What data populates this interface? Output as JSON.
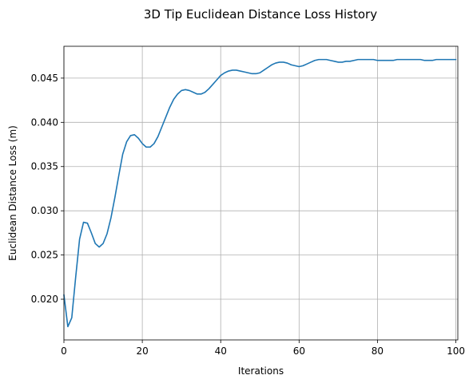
{
  "chart_data": {
    "type": "line",
    "title": "3D Tip Euclidean Distance Loss History",
    "xlabel": "Iterations",
    "ylabel": "Euclidean Distance Loss (m)",
    "xlim": [
      0,
      100.5
    ],
    "ylim": [
      0.0154,
      0.0486
    ],
    "xticks": [
      0,
      20,
      40,
      60,
      80,
      100
    ],
    "yticks": [
      0.02,
      0.025,
      0.03,
      0.035,
      0.04,
      0.045
    ],
    "ytick_labels": [
      "0.020",
      "0.025",
      "0.030",
      "0.035",
      "0.040",
      "0.045"
    ],
    "grid": true,
    "line_color": "#1f77b4",
    "series": [
      {
        "x": [
          0,
          1,
          2,
          3,
          4,
          5,
          6,
          7,
          8,
          9,
          10,
          11,
          12,
          13,
          14,
          15,
          16,
          17,
          18,
          19,
          20,
          21,
          22,
          23,
          24,
          25,
          26,
          27,
          28,
          29,
          30,
          31,
          32,
          33,
          34,
          35,
          36,
          37,
          38,
          39,
          40,
          41,
          42,
          43,
          44,
          45,
          46,
          47,
          48,
          49,
          50,
          51,
          52,
          53,
          54,
          55,
          56,
          57,
          58,
          59,
          60,
          61,
          62,
          63,
          64,
          65,
          66,
          67,
          68,
          69,
          70,
          71,
          72,
          73,
          74,
          75,
          76,
          77,
          78,
          79,
          80,
          81,
          82,
          83,
          84,
          85,
          86,
          87,
          88,
          89,
          90,
          91,
          92,
          93,
          94,
          95,
          96,
          97,
          98,
          99,
          100
        ],
        "values": [
          0.0205,
          0.0169,
          0.0179,
          0.0225,
          0.0268,
          0.0287,
          0.0286,
          0.0275,
          0.0263,
          0.0259,
          0.0263,
          0.0274,
          0.0292,
          0.0315,
          0.034,
          0.0364,
          0.0378,
          0.0385,
          0.0386,
          0.0382,
          0.0376,
          0.0372,
          0.0372,
          0.0376,
          0.0384,
          0.0395,
          0.0406,
          0.0417,
          0.0426,
          0.0432,
          0.0436,
          0.0437,
          0.0436,
          0.0434,
          0.0432,
          0.0432,
          0.0434,
          0.0438,
          0.0443,
          0.0448,
          0.0453,
          0.0456,
          0.0458,
          0.0459,
          0.0459,
          0.0458,
          0.0457,
          0.0456,
          0.0455,
          0.0455,
          0.0456,
          0.0459,
          0.0462,
          0.0465,
          0.0467,
          0.0468,
          0.0468,
          0.0467,
          0.0465,
          0.0464,
          0.0463,
          0.0464,
          0.0466,
          0.0468,
          0.047,
          0.0471,
          0.0471,
          0.0471,
          0.047,
          0.0469,
          0.0468,
          0.0468,
          0.0469,
          0.0469,
          0.047,
          0.0471,
          0.0471,
          0.0471,
          0.0471,
          0.0471,
          0.047,
          0.047,
          0.047,
          0.047,
          0.047,
          0.0471,
          0.0471,
          0.0471,
          0.0471,
          0.0471,
          0.0471,
          0.0471,
          0.047,
          0.047,
          0.047,
          0.0471,
          0.0471,
          0.0471,
          0.0471,
          0.0471,
          0.0471
        ]
      }
    ]
  }
}
